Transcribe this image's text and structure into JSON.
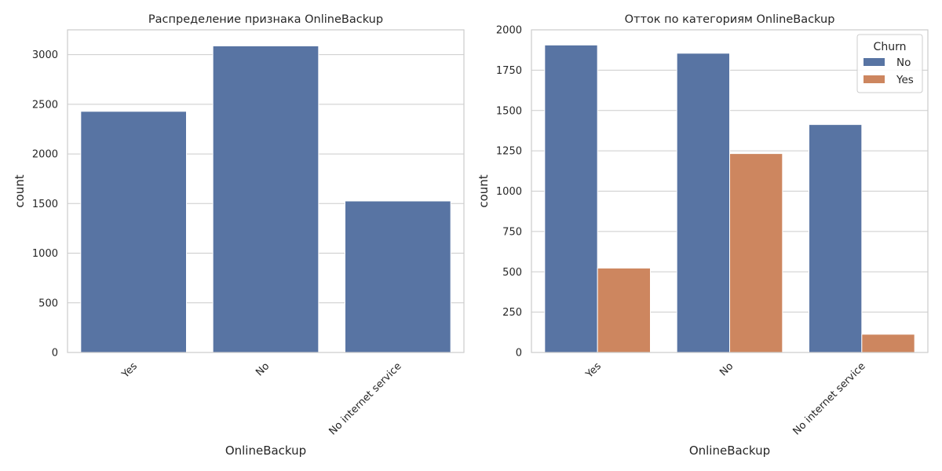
{
  "chart_data": [
    {
      "type": "bar",
      "title": "Распределение признака OnlineBackup",
      "xlabel": "OnlineBackup",
      "ylabel": "count",
      "categories": [
        "Yes",
        "No",
        "No internet service"
      ],
      "series": [
        {
          "values": [
            2429,
            3088,
            1526
          ],
          "color": "#5874a3"
        }
      ],
      "ylim": [
        0,
        3250
      ],
      "yticks": [
        0,
        500,
        1000,
        1500,
        2000,
        2500,
        3000
      ],
      "grid": true
    },
    {
      "type": "bar",
      "title": "Отток по категориям OnlineBackup",
      "xlabel": "OnlineBackup",
      "ylabel": "count",
      "categories": [
        "Yes",
        "No",
        "No internet service"
      ],
      "series": [
        {
          "name": "No",
          "values": [
            1906,
            1855,
            1413
          ],
          "color": "#5874a3"
        },
        {
          "name": "Yes",
          "values": [
            523,
            1233,
            113
          ],
          "color": "#cd865f"
        }
      ],
      "ylim": [
        0,
        2000
      ],
      "yticks": [
        0,
        250,
        500,
        750,
        1000,
        1250,
        1500,
        1750,
        2000
      ],
      "grid": true,
      "legend": {
        "title": "Churn",
        "position": "top-right"
      }
    }
  ]
}
